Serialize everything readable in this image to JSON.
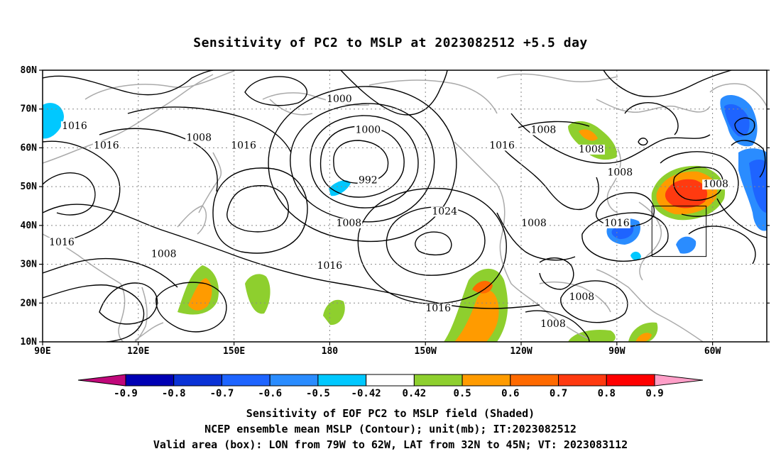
{
  "title": "Sensitivity of PC2 to MSLP at 2023082512 +5.5 day",
  "lat_ticks": [
    "80N",
    "70N",
    "60N",
    "50N",
    "40N",
    "30N",
    "20N",
    "10N"
  ],
  "lon_ticks": [
    "90E",
    "120E",
    "150E",
    "180",
    "150W",
    "120W",
    "90W",
    "60W"
  ],
  "contour_labels": [
    {
      "text": "1000",
      "lon": -177,
      "lat": 72
    },
    {
      "text": "1016",
      "lon": 100,
      "lat": 65
    },
    {
      "text": "1016",
      "lon": 110,
      "lat": 60
    },
    {
      "text": "1008",
      "lon": 139,
      "lat": 62
    },
    {
      "text": "1016",
      "lon": 153,
      "lat": 60
    },
    {
      "text": "1000",
      "lon": -168,
      "lat": 64
    },
    {
      "text": "992",
      "lon": -168,
      "lat": 51
    },
    {
      "text": "1008",
      "lon": -113,
      "lat": 64
    },
    {
      "text": "1016",
      "lon": -126,
      "lat": 60
    },
    {
      "text": "1008",
      "lon": -98,
      "lat": 59
    },
    {
      "text": "1008",
      "lon": -89,
      "lat": 53
    },
    {
      "text": "1008",
      "lon": -59,
      "lat": 50
    },
    {
      "text": "1024",
      "lon": -144,
      "lat": 43
    },
    {
      "text": "1008",
      "lon": -174,
      "lat": 40
    },
    {
      "text": "1008",
      "lon": -116,
      "lat": 40
    },
    {
      "text": "1016",
      "lon": -90,
      "lat": 40
    },
    {
      "text": "1016",
      "lon": 96,
      "lat": 35
    },
    {
      "text": "1008",
      "lon": 128,
      "lat": 32
    },
    {
      "text": "1016",
      "lon": -180,
      "lat": 29
    },
    {
      "text": "1016",
      "lon": -146,
      "lat": 18
    },
    {
      "text": "1008",
      "lon": -101,
      "lat": 21
    },
    {
      "text": "1008",
      "lon": -110,
      "lat": 14
    }
  ],
  "colorbar": {
    "labels": [
      "-0.9",
      "-0.8",
      "-0.7",
      "-0.6",
      "-0.5",
      "-0.42",
      "0.42",
      "0.5",
      "0.6",
      "0.7",
      "0.8",
      "0.9"
    ],
    "colors": [
      "#c0087a",
      "#0000b4",
      "#0a32d6",
      "#1e64ff",
      "#2a8cff",
      "#00c8ff",
      "#ffffff",
      "#8ecf2e",
      "#ff9b00",
      "#ff6a00",
      "#ff3a10",
      "#ff0000",
      "#ff9fc8"
    ]
  },
  "caption": [
    "Sensitivity of EOF PC2 to MSLP field (Shaded)",
    "NCEP ensemble mean MSLP (Contour); unit(mb); IT:2023082512",
    "Valid area (box): LON from 79W to 62W, LAT from 32N to 45N; VT: 2023083112"
  ],
  "valid_box": {
    "lon_min": -79,
    "lon_max": -62,
    "lat_min": 32,
    "lat_max": 45
  }
}
